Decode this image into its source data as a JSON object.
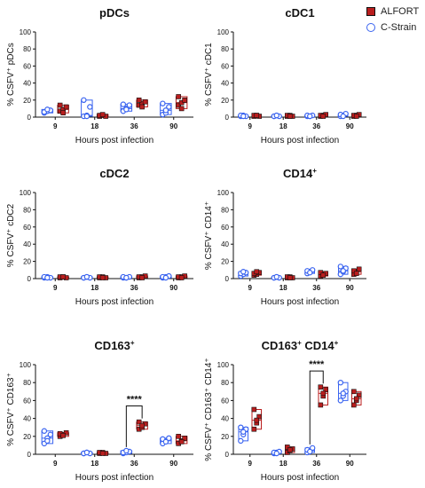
{
  "legend": [
    {
      "label": "ALFORT",
      "color": "#b91e1e",
      "marker": "square"
    },
    {
      "label": "C-Strain",
      "color": "#3a64f0",
      "marker": "circle-open"
    }
  ],
  "chart_data": [
    {
      "type": "box",
      "title": "pDCs",
      "ylabel": "% CSFV⁺ pDCs",
      "xlabel": "Hours post infection",
      "categories": [
        "9",
        "18",
        "36",
        "90"
      ],
      "ylim": [
        0,
        100
      ],
      "yticks": [
        0,
        20,
        40,
        60,
        80,
        100
      ],
      "series": [
        {
          "name": "C-Strain",
          "values": [
            [
              5,
              7,
              8,
              6,
              9
            ],
            [
              1,
              2,
              12,
              20,
              1
            ],
            [
              7,
              10,
              14,
              15,
              9
            ],
            [
              3,
              5,
              12,
              16,
              8
            ]
          ]
        },
        {
          "name": "ALFORT",
          "values": [
            [
              7,
              9,
              12,
              14,
              5
            ],
            [
              1,
              2,
              1,
              2,
              3
            ],
            [
              14,
              16,
              18,
              20,
              12
            ],
            [
              14,
              17,
              20,
              24,
              10
            ]
          ]
        }
      ]
    },
    {
      "type": "box",
      "title": "cDC1",
      "ylabel": "% CSFV⁺ cDC1",
      "xlabel": "Hours post infection",
      "categories": [
        "9",
        "18",
        "36",
        "90"
      ],
      "ylim": [
        0,
        100
      ],
      "yticks": [
        0,
        20,
        40,
        60,
        80,
        100
      ],
      "series": [
        {
          "name": "C-Strain",
          "values": [
            [
              1,
              2,
              1,
              2,
              1
            ],
            [
              1,
              2,
              1,
              1,
              2
            ],
            [
              1,
              1,
              2,
              2,
              1
            ],
            [
              1,
              2,
              4,
              3,
              1
            ]
          ]
        },
        {
          "name": "ALFORT",
          "values": [
            [
              1,
              2,
              1,
              2,
              2
            ],
            [
              1,
              2,
              1,
              2,
              1
            ],
            [
              1,
              2,
              3,
              2,
              1
            ],
            [
              1,
              2,
              3,
              2,
              1
            ]
          ]
        }
      ]
    },
    {
      "type": "box",
      "title": "cDC2",
      "ylabel": "% CSFV⁺ cDC2",
      "xlabel": "Hours post infection",
      "categories": [
        "9",
        "18",
        "36",
        "90"
      ],
      "ylim": [
        0,
        100
      ],
      "yticks": [
        0,
        20,
        40,
        60,
        80,
        100
      ],
      "series": [
        {
          "name": "C-Strain",
          "values": [
            [
              1,
              2,
              1,
              2,
              1
            ],
            [
              1,
              2,
              1,
              1,
              2
            ],
            [
              1,
              1,
              2,
              2,
              1
            ],
            [
              1,
              2,
              3,
              2,
              1
            ]
          ]
        },
        {
          "name": "ALFORT",
          "values": [
            [
              1,
              2,
              1,
              2,
              2
            ],
            [
              1,
              2,
              1,
              2,
              1
            ],
            [
              1,
              2,
              3,
              2,
              1
            ],
            [
              1,
              2,
              3,
              2,
              1
            ]
          ]
        }
      ]
    },
    {
      "type": "box",
      "title": "CD14",
      "title_sup": "+",
      "ylabel": "% CSFV⁺ CD14⁺",
      "xlabel": "Hours post infection",
      "categories": [
        "9",
        "18",
        "36",
        "90"
      ],
      "ylim": [
        0,
        100
      ],
      "yticks": [
        0,
        20,
        40,
        60,
        80,
        100
      ],
      "series": [
        {
          "name": "C-Strain",
          "values": [
            [
              3,
              5,
              7,
              6,
              8
            ],
            [
              1,
              2,
              1,
              1,
              2
            ],
            [
              6,
              8,
              10,
              9,
              7
            ],
            [
              5,
              8,
              12,
              14,
              9
            ]
          ]
        },
        {
          "name": "ALFORT",
          "values": [
            [
              4,
              5,
              7,
              6,
              8
            ],
            [
              1,
              2,
              1,
              2,
              1
            ],
            [
              3,
              5,
              6,
              7,
              4
            ],
            [
              5,
              8,
              11,
              9,
              6
            ]
          ]
        }
      ]
    },
    {
      "type": "box",
      "title": "CD163",
      "title_sup": "+",
      "ylabel": "% CSFV⁺ CD163⁺",
      "xlabel": "Hours post infection",
      "categories": [
        "9",
        "18",
        "36",
        "90"
      ],
      "ylim": [
        0,
        100
      ],
      "yticks": [
        0,
        20,
        40,
        60,
        80,
        100
      ],
      "series": [
        {
          "name": "C-Strain",
          "values": [
            [
              12,
              18,
              22,
              26,
              15
            ],
            [
              1,
              2,
              1,
              1,
              2
            ],
            [
              1,
              2,
              3,
              2,
              4
            ],
            [
              12,
              15,
              18,
              17,
              14
            ]
          ]
        },
        {
          "name": "ALFORT",
          "values": [
            [
              20,
              22,
              24,
              23,
              21
            ],
            [
              1,
              2,
              1,
              2,
              1
            ],
            [
              28,
              30,
              34,
              36,
              32
            ],
            [
              12,
              15,
              18,
              20,
              14
            ]
          ]
        }
      ],
      "significance": {
        "label": "****",
        "category": "36"
      }
    },
    {
      "type": "box",
      "title": "CD163",
      "title_sup": "+",
      "title_suffix": " CD14",
      "title_suffix_sup": "+",
      "ylabel": "% CSFV⁺ CD163⁺ CD14⁺",
      "xlabel": "Hours post infection",
      "categories": [
        "9",
        "18",
        "36",
        "90"
      ],
      "ylim": [
        0,
        100
      ],
      "yticks": [
        0,
        20,
        40,
        60,
        80,
        100
      ],
      "series": [
        {
          "name": "C-Strain",
          "values": [
            [
              15,
              22,
              28,
              30,
              25
            ],
            [
              1,
              2,
              3,
              2,
              1
            ],
            [
              2,
              4,
              7,
              5,
              3
            ],
            [
              60,
              65,
              70,
              80,
              68
            ]
          ]
        },
        {
          "name": "ALFORT",
          "values": [
            [
              28,
              35,
              42,
              50,
              38
            ],
            [
              2,
              4,
              6,
              8,
              5
            ],
            [
              55,
              65,
              72,
              75,
              68
            ],
            [
              55,
              60,
              66,
              70,
              62
            ]
          ]
        }
      ],
      "significance": {
        "label": "****",
        "category": "36"
      }
    }
  ]
}
